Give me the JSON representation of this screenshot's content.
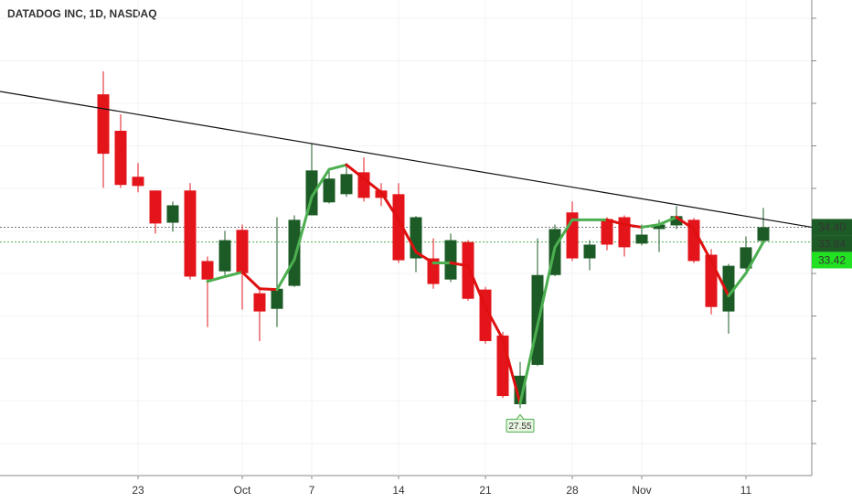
{
  "chart_data": {
    "type": "candlestick",
    "title": "DATADOG INC, 1D, NASDAQ",
    "categories": [
      null,
      null,
      "23",
      null,
      null,
      null,
      null,
      null,
      "Oct",
      null,
      null,
      null,
      "7",
      null,
      null,
      null,
      null,
      "14",
      null,
      null,
      null,
      null,
      "21",
      null,
      null,
      null,
      null,
      "28",
      null,
      null,
      null,
      "Nov",
      null,
      null,
      null,
      null,
      null,
      "11",
      null
    ],
    "open": [
      39.43,
      38.05,
      36.31,
      35.79,
      34.57,
      35.79,
      33.12,
      32.73,
      34.3,
      31.9,
      31.31,
      32.18,
      34.85,
      35.34,
      35.65,
      36.48,
      35.79,
      35.65,
      33.22,
      33.22,
      32.42,
      33.84,
      32.04,
      30.3,
      27.7,
      29.19,
      32.59,
      34.96,
      33.22,
      34.71,
      34.78,
      33.78,
      34.33,
      34.47,
      34.68,
      33.36,
      31.21,
      32.84,
      33.88
    ],
    "high": [
      40.3,
      38.67,
      36.83,
      35.79,
      35.37,
      36.07,
      33.29,
      34.26,
      34.5,
      32.07,
      34.78,
      34.85,
      37.56,
      36.59,
      36.83,
      37.04,
      36.07,
      36.07,
      34.82,
      33.98,
      34.16,
      33.91,
      32.14,
      30.44,
      29.3,
      33.98,
      34.5,
      35.37,
      33.91,
      34.78,
      34.85,
      34.5,
      34.68,
      35.2,
      34.75,
      33.57,
      33.01,
      34.05,
      35.13
    ],
    "low": [
      35.89,
      35.89,
      35.72,
      34.16,
      34.23,
      32.42,
      30.62,
      32.59,
      31.28,
      30.09,
      30.62,
      32.14,
      34.85,
      35.3,
      35.55,
      35.37,
      35.2,
      33.05,
      32.7,
      32.07,
      32.32,
      31.62,
      29.99,
      27.94,
      27.55,
      29.15,
      32.55,
      33.12,
      32.77,
      33.53,
      33.29,
      33.71,
      33.46,
      34.33,
      33.05,
      31.1,
      30.37,
      32.77,
      33.81
    ],
    "close": [
      37.18,
      36.0,
      35.96,
      34.54,
      35.23,
      32.53,
      32.42,
      33.91,
      32.66,
      31.21,
      32.07,
      34.68,
      36.55,
      36.24,
      36.41,
      35.51,
      35.51,
      33.15,
      34.78,
      32.25,
      33.91,
      31.69,
      30.09,
      28.01,
      28.78,
      32.59,
      34.33,
      33.22,
      33.74,
      33.74,
      33.64,
      34.12,
      34.5,
      34.82,
      33.12,
      31.38,
      32.94,
      33.64,
      34.4
    ],
    "indicator": [
      null,
      null,
      null,
      null,
      null,
      null,
      32.35,
      32.53,
      32.7,
      32.07,
      32.04,
      33.18,
      35.55,
      36.59,
      36.76,
      36.24,
      35.72,
      34.68,
      33.46,
      33.05,
      33.05,
      32.94,
      31.38,
      30.16,
      27.73,
      30.68,
      33.64,
      34.68,
      34.68,
      34.68,
      34.5,
      34.4,
      34.5,
      34.78,
      34.33,
      33.12,
      31.8,
      32.66,
      33.84
    ],
    "trendline": {
      "start": 39.54,
      "end": 34.4
    },
    "price_labels": [
      {
        "value": 34.4,
        "label": "34.40",
        "color": "#1d5b26",
        "text_color": "#ffffff",
        "line_color": "#777777"
      },
      {
        "value": 33.84,
        "label": "33.84",
        "color": "#1d5b26",
        "text_color": "#ffffff",
        "line_color": "#4caf50"
      },
      {
        "value": 33.42,
        "label": "33.42",
        "color": "#22e022",
        "text_color": "#1d5b26"
      }
    ],
    "low_annotation_index": 24,
    "up_color": "#1d5b26",
    "down_color": "#e3151b",
    "indicator_up_color": "#4caf50",
    "indicator_down_color": "#e01010",
    "ylim": [
      25,
      43
    ],
    "grid": true
  }
}
